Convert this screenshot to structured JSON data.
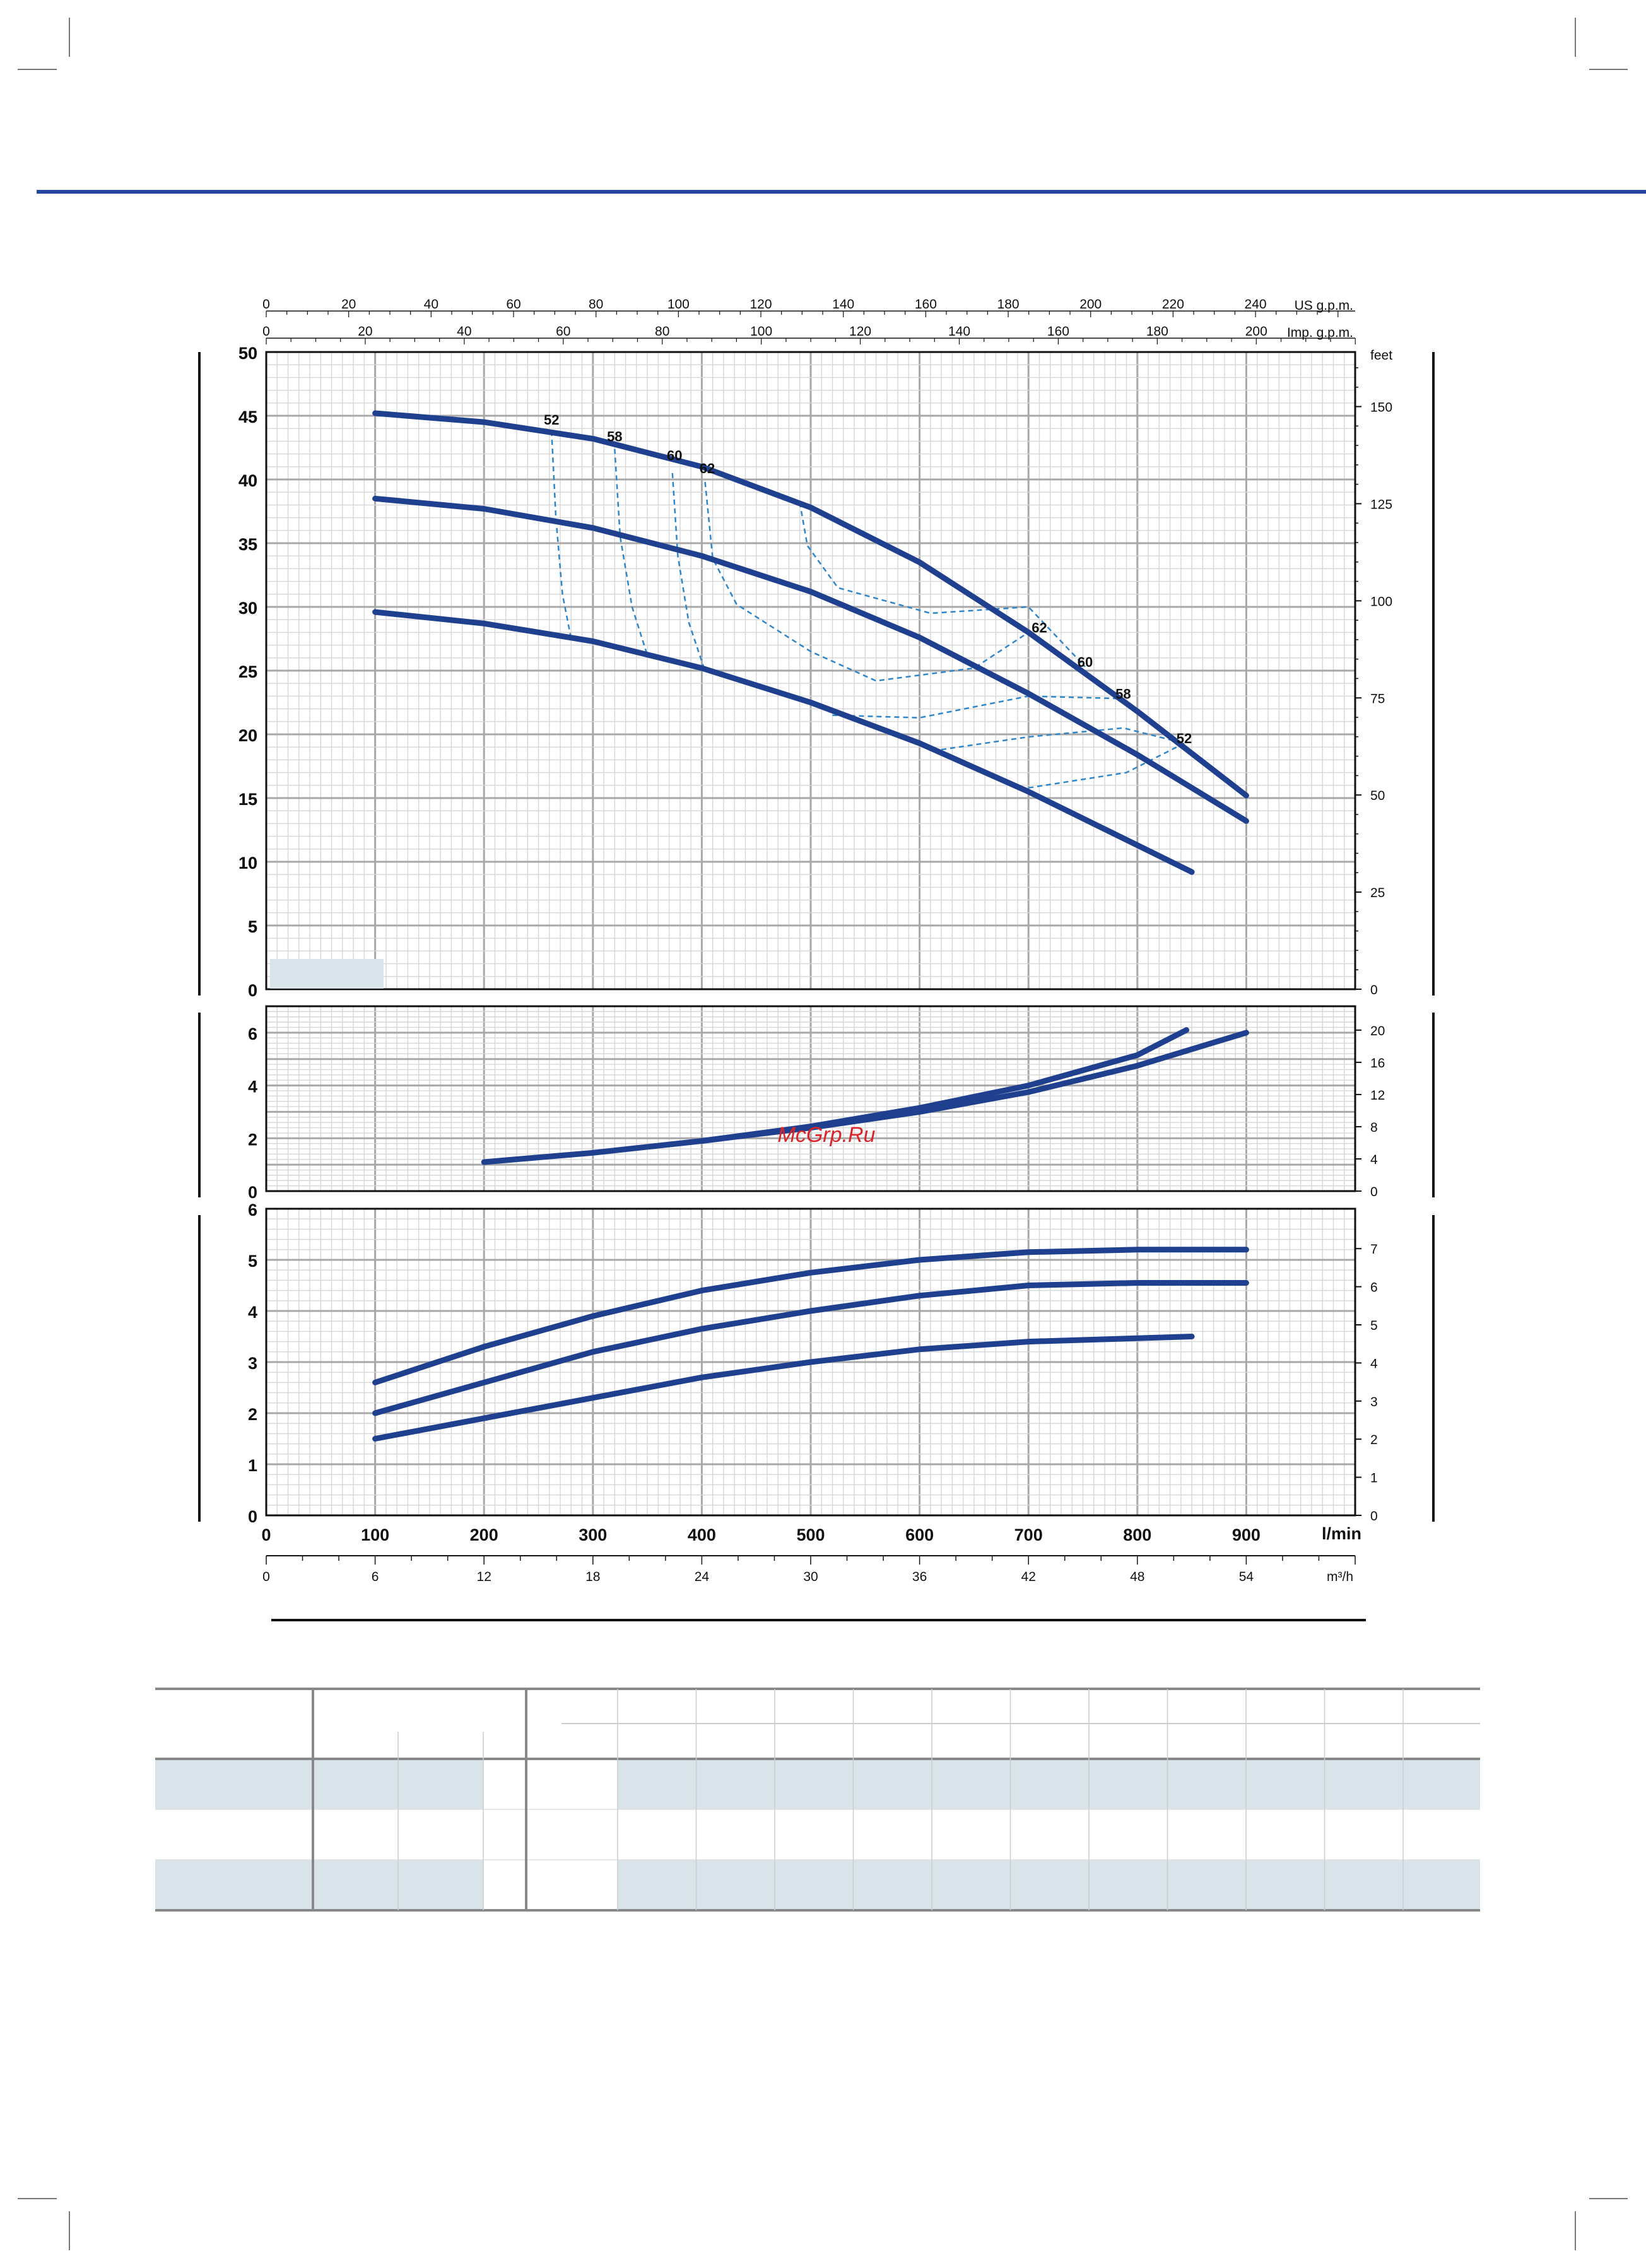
{
  "colors": {
    "curve": "#1f3f8f",
    "dashed": "#2e86c9",
    "grid_major": "#a8a8a8",
    "grid_minor": "#d6d6d6",
    "header_rule": "#2546a2",
    "row_shade": "#d9e3ea",
    "watermark": "#d9242a"
  },
  "watermark": "McGrp.Ru",
  "chart_data": [
    {
      "name": "head",
      "type": "line",
      "x_unit": "l/min",
      "xlim": [
        0,
        1000
      ],
      "ylim": [
        0,
        50
      ],
      "grid": true,
      "y_ticks": [
        "0",
        "5",
        "10",
        "15",
        "20",
        "25",
        "30",
        "35",
        "40",
        "45",
        "50"
      ],
      "right_unit": "feet",
      "right_ticks": [
        "0",
        "25",
        "50",
        "75",
        "100",
        "125",
        "150"
      ],
      "top_us_label": "US g.p.m.",
      "top_us_ticks": [
        "0",
        "20",
        "40",
        "60",
        "80",
        "100",
        "120",
        "140",
        "160",
        "180",
        "200",
        "220",
        "240"
      ],
      "top_imp_label": "Imp. g.p.m.",
      "top_imp_ticks": [
        "0",
        "20",
        "40",
        "60",
        "80",
        "100",
        "120",
        "140",
        "160",
        "180",
        "200"
      ],
      "series": [
        {
          "x": [
            100,
            200,
            300,
            400,
            500,
            600,
            700,
            800,
            900
          ],
          "y": [
            45.2,
            44.5,
            43.2,
            41.0,
            37.8,
            33.5,
            28.0,
            21.8,
            15.2
          ]
        },
        {
          "x": [
            100,
            200,
            300,
            400,
            500,
            600,
            700,
            800,
            900
          ],
          "y": [
            38.5,
            37.7,
            36.2,
            34.0,
            31.2,
            27.6,
            23.2,
            18.4,
            13.2
          ]
        },
        {
          "x": [
            100,
            200,
            300,
            400,
            500,
            600,
            700,
            850
          ],
          "y": [
            29.6,
            28.7,
            27.3,
            25.2,
            22.5,
            19.3,
            15.5,
            9.2
          ]
        }
      ],
      "efficiency_labels": [
        {
          "label": "52",
          "x": 262,
          "y": 44.3
        },
        {
          "label": "58",
          "x": 320,
          "y": 43.0
        },
        {
          "label": "60",
          "x": 375,
          "y": 41.5
        },
        {
          "label": "62",
          "x": 405,
          "y": 40.5
        },
        {
          "label": "62",
          "x": 710,
          "y": 28.0
        },
        {
          "label": "60",
          "x": 752,
          "y": 25.3
        },
        {
          "label": "58",
          "x": 787,
          "y": 22.8
        },
        {
          "label": "52",
          "x": 843,
          "y": 19.3
        }
      ],
      "efficiency_contours": [
        {
          "x": [
            262,
            266,
            272,
            280
          ],
          "y": [
            43.8,
            37.0,
            31.0,
            27.5
          ]
        },
        {
          "x": [
            320,
            325,
            336,
            350
          ],
          "y": [
            42.4,
            35.5,
            30.0,
            26.2
          ]
        },
        {
          "x": [
            373,
            378,
            388,
            402
          ],
          "y": [
            40.5,
            34.0,
            28.8,
            25.2
          ]
        },
        {
          "x": [
            403,
            410,
            432,
            500,
            560,
            650,
            700
          ],
          "y": [
            39.8,
            33.8,
            30.2,
            26.5,
            24.2,
            25.2,
            28.0
          ]
        },
        {
          "x": [
            490,
            497,
            525,
            610,
            700,
            752
          ],
          "y": [
            38.2,
            34.8,
            31.5,
            29.5,
            30.0,
            25.3
          ]
        },
        {
          "x": [
            520,
            600,
            700,
            787
          ],
          "y": [
            21.5,
            21.3,
            23.0,
            22.8
          ]
        },
        {
          "x": [
            620,
            700,
            787,
            843
          ],
          "y": [
            18.8,
            19.8,
            20.5,
            19.3
          ]
        },
        {
          "x": [
            700,
            790,
            843
          ],
          "y": [
            15.8,
            17.0,
            19.3
          ]
        }
      ]
    },
    {
      "name": "npsh",
      "type": "line",
      "xlim": [
        0,
        1000
      ],
      "ylim": [
        0,
        7
      ],
      "grid": true,
      "y_ticks": [
        "0",
        "2",
        "4",
        "6"
      ],
      "right_ticks": [
        "0",
        "4",
        "8",
        "12",
        "16",
        "20"
      ],
      "series": [
        {
          "x": [
            200,
            300,
            400,
            500,
            600,
            700,
            800,
            845
          ],
          "y": [
            1.1,
            1.45,
            1.9,
            2.45,
            3.15,
            4.0,
            5.15,
            6.1
          ]
        },
        {
          "x": [
            400,
            500,
            600,
            700,
            800,
            900
          ],
          "y": [
            1.9,
            2.4,
            3.0,
            3.75,
            4.75,
            6.0
          ]
        }
      ]
    },
    {
      "name": "power",
      "type": "line",
      "xlim": [
        0,
        1000
      ],
      "ylim": [
        0,
        6
      ],
      "grid": true,
      "y_ticks": [
        "0",
        "1",
        "2",
        "3",
        "4",
        "5",
        "6"
      ],
      "right_ticks": [
        "0",
        "1",
        "2",
        "3",
        "4",
        "5",
        "6",
        "7"
      ],
      "x_ticks": [
        "0",
        "100",
        "200",
        "300",
        "400",
        "500",
        "600",
        "700",
        "800",
        "900"
      ],
      "x_label": "l/min",
      "m3h_ticks": [
        "0",
        "6",
        "12",
        "18",
        "24",
        "30",
        "36",
        "42",
        "48",
        "54"
      ],
      "m3h_label": "m³/h",
      "series": [
        {
          "x": [
            100,
            200,
            300,
            400,
            500,
            600,
            700,
            800,
            900
          ],
          "y": [
            2.6,
            3.3,
            3.9,
            4.4,
            4.75,
            5.0,
            5.15,
            5.2,
            5.2
          ]
        },
        {
          "x": [
            100,
            200,
            300,
            400,
            500,
            600,
            700,
            800,
            900
          ],
          "y": [
            2.0,
            2.6,
            3.2,
            3.65,
            4.0,
            4.3,
            4.5,
            4.55,
            4.55
          ]
        },
        {
          "x": [
            100,
            200,
            300,
            400,
            500,
            600,
            700,
            850
          ],
          "y": [
            1.5,
            1.9,
            2.3,
            2.7,
            3.0,
            3.25,
            3.4,
            3.5
          ]
        }
      ]
    }
  ]
}
